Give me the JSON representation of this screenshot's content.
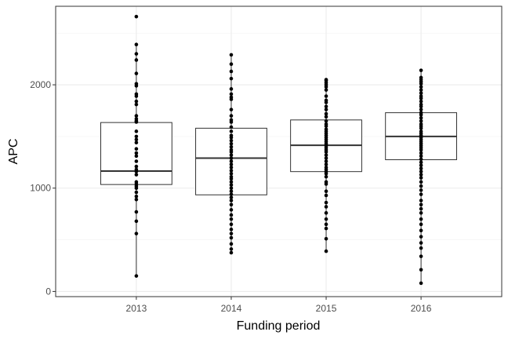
{
  "chart_data": {
    "type": "box",
    "xlabel": "Funding period",
    "ylabel": "APC",
    "ylim": [
      -50,
      2760
    ],
    "yticks": [
      0,
      1000,
      2000
    ],
    "yminor": [
      500,
      1500,
      2500
    ],
    "grid": true,
    "categories": [
      "2013",
      "2014",
      "2015",
      "2016"
    ],
    "boxes": [
      {
        "category": "2013",
        "whisker_low": 150,
        "q1": 1035,
        "median": 1165,
        "q3": 1635,
        "whisker_high": 2390
      },
      {
        "category": "2014",
        "whisker_low": 375,
        "q1": 935,
        "median": 1290,
        "q3": 1580,
        "whisker_high": 2290
      },
      {
        "category": "2015",
        "whisker_low": 390,
        "q1": 1160,
        "median": 1415,
        "q3": 1660,
        "whisker_high": 2050
      },
      {
        "category": "2016",
        "whisker_low": 80,
        "q1": 1275,
        "median": 1500,
        "q3": 1730,
        "whisker_high": 2140
      }
    ],
    "points": [
      {
        "category": "2013",
        "values": [
          2660,
          2390,
          2300,
          2240,
          2110,
          2010,
          1990,
          1910,
          1890,
          1840,
          1810,
          1700,
          1670,
          1650,
          1640,
          1550,
          1500,
          1470,
          1440,
          1380,
          1340,
          1310,
          1260,
          1210,
          1180,
          1160,
          1130,
          1060,
          1040,
          1020,
          1000,
          960,
          920,
          890,
          770,
          680,
          560,
          150
        ]
      },
      {
        "category": "2014",
        "values": [
          2290,
          2200,
          2130,
          2060,
          1960,
          1910,
          1880,
          1860,
          1760,
          1700,
          1660,
          1640,
          1590,
          1550,
          1510,
          1490,
          1460,
          1430,
          1400,
          1370,
          1350,
          1320,
          1290,
          1260,
          1230,
          1200,
          1170,
          1140,
          1110,
          1090,
          1060,
          1030,
          1000,
          970,
          940,
          910,
          880,
          840,
          790,
          740,
          700,
          650,
          600,
          560,
          520,
          460,
          410,
          375
        ]
      },
      {
        "category": "2015",
        "values": [
          2050,
          2040,
          2020,
          2000,
          1980,
          1950,
          1890,
          1850,
          1830,
          1790,
          1760,
          1720,
          1690,
          1650,
          1620,
          1600,
          1570,
          1550,
          1530,
          1510,
          1490,
          1470,
          1450,
          1430,
          1410,
          1390,
          1370,
          1350,
          1320,
          1290,
          1260,
          1230,
          1200,
          1180,
          1160,
          1140,
          1110,
          1060,
          1040,
          970,
          930,
          860,
          820,
          760,
          700,
          650,
          610,
          510,
          390
        ]
      },
      {
        "category": "2016",
        "values": [
          2140,
          2070,
          2050,
          2030,
          2010,
          1980,
          1950,
          1920,
          1890,
          1870,
          1840,
          1810,
          1790,
          1760,
          1730,
          1710,
          1680,
          1650,
          1620,
          1600,
          1580,
          1550,
          1530,
          1510,
          1490,
          1470,
          1450,
          1430,
          1410,
          1390,
          1370,
          1340,
          1310,
          1280,
          1250,
          1220,
          1190,
          1160,
          1130,
          1100,
          1060,
          1020,
          980,
          940,
          880,
          840,
          800,
          760,
          700,
          650,
          590,
          530,
          470,
          420,
          340,
          210,
          80
        ]
      }
    ]
  }
}
